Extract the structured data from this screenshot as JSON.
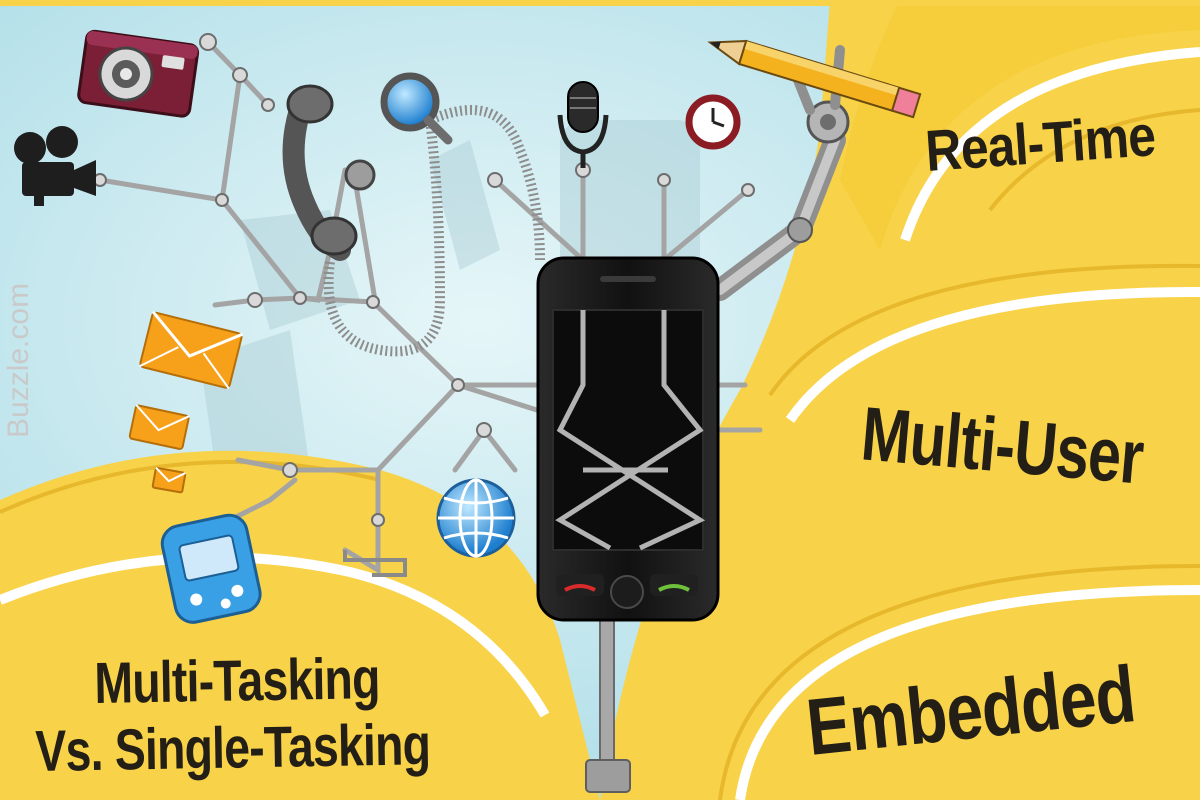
{
  "labels": {
    "real_time": "Real-Time",
    "multi_user": "Multi-User",
    "embedded": "Embedded",
    "multi_tasking_line1": "Multi-Tasking",
    "multi_tasking_line2": "Vs. Single-Tasking"
  },
  "watermark": "Buzzle.com",
  "icons": [
    "camera-icon",
    "video-camera-icon",
    "telephone-handset-icon",
    "magnifier-icon",
    "microphone-icon",
    "clock-icon",
    "pencil-icon",
    "envelope-icon",
    "globe-icon",
    "game-console-icon",
    "mobile-phone-icon"
  ],
  "colors": {
    "sky": "#bfe7ef",
    "yellow": "#f8d248",
    "yellow_edge": "#e7b82c",
    "text": "#231f16",
    "phone": "#1b1b1b",
    "wire": "#a4a4a4"
  }
}
